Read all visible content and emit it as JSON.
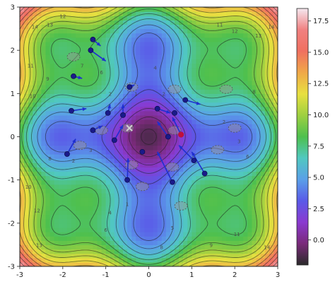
{
  "chart_data": {
    "type": "contour",
    "title": "",
    "xlabel": "",
    "ylabel": "",
    "xlim": [
      -3,
      3
    ],
    "ylim": [
      -3,
      3
    ],
    "x_ticks": [
      -3,
      -2,
      -1,
      0,
      1,
      2,
      3
    ],
    "y_ticks": [
      -3,
      -2,
      -1,
      0,
      1,
      2,
      3
    ],
    "colorbar": {
      "range": [
        -2,
        18.5
      ],
      "ticks": [
        0.0,
        2.5,
        5.0,
        7.5,
        10.0,
        12.5,
        15.0,
        17.5
      ],
      "tick_labels": [
        "0.0",
        "2.5",
        "5.0",
        "7.5",
        "10.0",
        "12.5",
        "15.0",
        "17.5"
      ],
      "colormap": [
        "#2a2a2a",
        "#7a2a7a",
        "#8a3ad0",
        "#5a5ae8",
        "#5aa0e8",
        "#50c8c0",
        "#4ec04e",
        "#9ed040",
        "#e8e040",
        "#f0a848",
        "#f07060",
        "#f08080",
        "#f5e8f0"
      ]
    },
    "contour_labels": [
      {
        "text": "14",
        "x": -2.65,
        "y": 2.5
      },
      {
        "text": "13",
        "x": -2.3,
        "y": 2.55
      },
      {
        "text": "12",
        "x": -2.0,
        "y": 2.75
      },
      {
        "text": "11",
        "x": -2.75,
        "y": 1.6
      },
      {
        "text": "10",
        "x": -2.7,
        "y": 0.9
      },
      {
        "text": "9",
        "x": -2.35,
        "y": 1.3
      },
      {
        "text": "7",
        "x": -1.55,
        "y": 1.6
      },
      {
        "text": "6",
        "x": -1.1,
        "y": 1.45
      },
      {
        "text": "4",
        "x": 0.15,
        "y": 1.55
      },
      {
        "text": "2",
        "x": -0.9,
        "y": 0.95
      },
      {
        "text": "1",
        "x": -0.3,
        "y": 0.95
      },
      {
        "text": "2",
        "x": 0.35,
        "y": 0.95
      },
      {
        "text": "3",
        "x": -1.35,
        "y": -0.35
      },
      {
        "text": "2",
        "x": -1.75,
        "y": -0.6
      },
      {
        "text": "8",
        "x": -2.3,
        "y": -0.55
      },
      {
        "text": "10",
        "x": -2.8,
        "y": -1.2
      },
      {
        "text": "12",
        "x": -2.6,
        "y": -1.75
      },
      {
        "text": "13",
        "x": -2.55,
        "y": -2.55
      },
      {
        "text": "1",
        "x": -0.5,
        "y": -1.6
      },
      {
        "text": "4",
        "x": -0.9,
        "y": -1.8
      },
      {
        "text": "6",
        "x": -1.0,
        "y": -2.2
      },
      {
        "text": "5",
        "x": 0.55,
        "y": -2.15
      },
      {
        "text": "8",
        "x": 0.3,
        "y": -2.6
      },
      {
        "text": "9",
        "x": 1.45,
        "y": -2.55
      },
      {
        "text": "11",
        "x": 2.05,
        "y": -2.3
      },
      {
        "text": "14",
        "x": 2.75,
        "y": -2.6
      },
      {
        "text": "2",
        "x": 1.75,
        "y": 0.3
      },
      {
        "text": "3",
        "x": 2.1,
        "y": -0.15
      },
      {
        "text": "6",
        "x": 2.3,
        "y": -0.5
      },
      {
        "text": "8",
        "x": 2.45,
        "y": 1.0
      },
      {
        "text": "13",
        "x": 2.55,
        "y": 2.3
      },
      {
        "text": "14",
        "x": 2.85,
        "y": 2.5
      },
      {
        "text": "12",
        "x": 2.0,
        "y": 2.4
      },
      {
        "text": "11",
        "x": 1.65,
        "y": 2.55
      }
    ],
    "minima": [
      [
        -1.75,
        1.85
      ],
      [
        -0.4,
        1.15
      ],
      [
        0.6,
        1.1
      ],
      [
        1.8,
        1.1
      ],
      [
        -1.1,
        0.15
      ],
      [
        -0.5,
        0.2
      ],
      [
        0.6,
        0.15
      ],
      [
        2.0,
        0.2
      ],
      [
        -0.4,
        -0.65
      ],
      [
        0.55,
        -0.7
      ],
      [
        -0.15,
        -1.15
      ],
      [
        0.75,
        -1.6
      ],
      [
        -1.6,
        -0.2
      ],
      [
        1.6,
        -0.3
      ]
    ],
    "vectors": [
      {
        "x": -1.3,
        "y": 2.25,
        "dx": 0.18,
        "dy": -0.15
      },
      {
        "x": -1.35,
        "y": 2.0,
        "dx": 0.35,
        "dy": -0.25
      },
      {
        "x": -1.75,
        "y": 1.4,
        "dx": 0.2,
        "dy": -0.05
      },
      {
        "x": -1.8,
        "y": 0.6,
        "dx": 0.35,
        "dy": 0.05
      },
      {
        "x": -1.3,
        "y": 0.15,
        "dx": 0.22,
        "dy": 0.1
      },
      {
        "x": -1.9,
        "y": -0.4,
        "dx": 0.2,
        "dy": 0.35
      },
      {
        "x": -0.6,
        "y": 0.5,
        "dx": 0.0,
        "dy": 0.25
      },
      {
        "x": -0.8,
        "y": -0.08,
        "dx": 0.2,
        "dy": 0.35
      },
      {
        "x": -0.95,
        "y": 0.55,
        "dx": 0.05,
        "dy": 0.2
      },
      {
        "x": -0.45,
        "y": 1.15,
        "dx": 0.12,
        "dy": 0.05
      },
      {
        "x": 0.85,
        "y": 0.85,
        "dx": 0.35,
        "dy": -0.1
      },
      {
        "x": 0.2,
        "y": 0.65,
        "dx": 0.3,
        "dy": -0.1
      },
      {
        "x": 0.45,
        "y": 0.0,
        "dx": -0.25,
        "dy": 0.35
      },
      {
        "x": 0.75,
        "y": 0.05,
        "dx": -0.2,
        "dy": 0.4
      },
      {
        "x": 1.3,
        "y": -0.85,
        "dx": -0.3,
        "dy": 0.5
      },
      {
        "x": 0.55,
        "y": -1.05,
        "dx": -0.35,
        "dy": 0.7
      },
      {
        "x": 1.05,
        "y": -0.55,
        "dx": -0.35,
        "dy": 0.35
      },
      {
        "x": -0.5,
        "y": -1.0,
        "dx": 0.02,
        "dy": 0.5
      },
      {
        "x": -0.15,
        "y": -0.35,
        "dx": 0.0,
        "dy": 0.0
      },
      {
        "x": 0.6,
        "y": 0.55,
        "dx": 0.0,
        "dy": 0.0
      }
    ],
    "special_points": [
      {
        "x": -0.45,
        "y": 0.2,
        "color": "#d0d0d0",
        "marker": "x"
      },
      {
        "x": 0.75,
        "y": 0.05,
        "color": "#c0103a",
        "marker": "dot"
      }
    ]
  }
}
